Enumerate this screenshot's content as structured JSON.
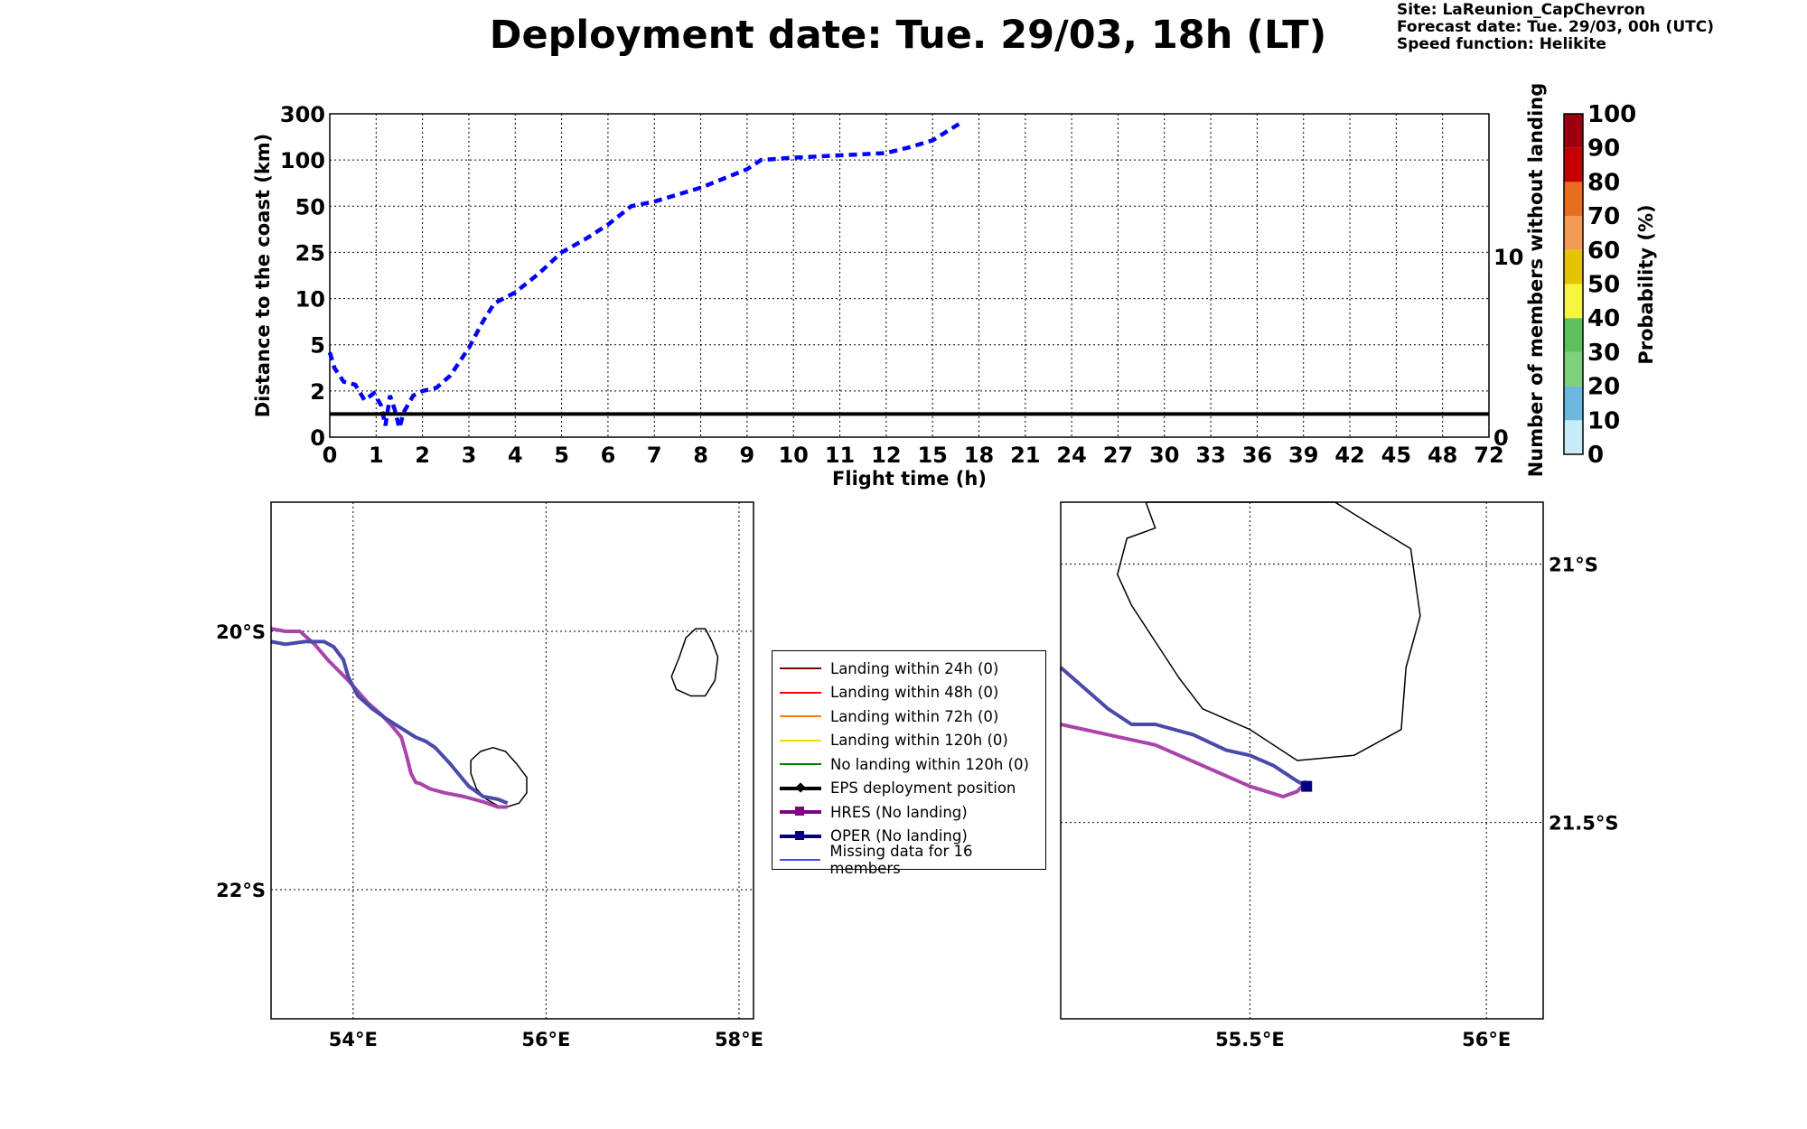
{
  "title": "Deployment date: Tue. 29/03, 18h (LT)",
  "info": {
    "site": "Site: LaReunion_CapChevron",
    "forecast": "Forecast date: Tue. 29/03, 00h (UTC)",
    "speed": "Speed function: Helikite"
  },
  "chart_data": [
    {
      "type": "line",
      "xlabel": "Flight time (h)",
      "ylabel": "Distance to the coast (km)",
      "y2label": "Number of members without landing",
      "x_ticks": [
        "0",
        "1",
        "2",
        "3",
        "4",
        "5",
        "6",
        "7",
        "8",
        "9",
        "10",
        "11",
        "12",
        "15",
        "18",
        "21",
        "24",
        "27",
        "30",
        "33",
        "36",
        "39",
        "42",
        "45",
        "48",
        "72"
      ],
      "y_ticks": [
        "0",
        "2",
        "5",
        "10",
        "25",
        "50",
        "100",
        "300"
      ],
      "y2_ticks": [
        "0",
        "10"
      ],
      "y_scale": "piecewise (ticks equally spaced)",
      "grid": true,
      "series": [
        {
          "style": "dashed",
          "color": "#0000ff",
          "x": [
            0,
            0.1,
            0.3,
            0.55,
            0.75,
            0.95,
            1.1,
            1.2,
            1.3,
            1.4,
            1.5,
            1.6,
            1.8,
            2.0,
            2.3,
            2.6,
            3.0,
            3.3,
            3.55,
            4.0,
            4.5,
            5.0,
            5.5,
            6.0,
            6.5,
            7.0,
            8.0,
            8.5,
            9.0,
            9.3,
            10.0,
            11.0,
            12.0,
            13.5,
            15.0,
            16.8
          ],
          "y": [
            4.5,
            3.5,
            2.6,
            2.4,
            1.6,
            1.9,
            1.4,
            0.5,
            1.8,
            1.2,
            0.4,
            1.1,
            1.8,
            2.0,
            2.2,
            3.0,
            4.8,
            7.5,
            9.5,
            12,
            18,
            25,
            32,
            40,
            50,
            55,
            70,
            80,
            90,
            100,
            110,
            120,
            130,
            155,
            185,
            260
          ]
        },
        {
          "style": "solid",
          "color": "#000000",
          "x": [
            0,
            72
          ],
          "y": [
            1,
            1
          ]
        }
      ]
    },
    {
      "type": "map",
      "x_ticks": [
        "54°E",
        "56°E",
        "58°E"
      ],
      "y_ticks": [
        "20°S",
        "22°S"
      ],
      "grid": true,
      "series": [
        {
          "name": "HRES (No landing)",
          "color": "#aa44aa",
          "x": [
            53.15,
            53.3,
            53.45,
            53.6,
            53.75,
            53.95,
            54.15,
            54.3,
            54.4,
            54.5,
            54.55,
            54.6,
            54.65,
            54.7,
            54.8,
            54.95,
            55.15,
            55.35,
            55.5,
            55.6
          ],
          "y": [
            -19.98,
            -20.0,
            -20.0,
            -20.1,
            -20.23,
            -20.38,
            -20.55,
            -20.65,
            -20.73,
            -20.82,
            -20.95,
            -21.1,
            -21.17,
            -21.18,
            -21.22,
            -21.25,
            -21.28,
            -21.32,
            -21.36,
            -21.36
          ]
        },
        {
          "name": "OPER (No landing)",
          "color": "#4a4aaa",
          "x": [
            53.15,
            53.3,
            53.5,
            53.7,
            53.8,
            53.9,
            53.95,
            54.05,
            54.2,
            54.35,
            54.5,
            54.65,
            54.75,
            54.85,
            55.0,
            55.2,
            55.35,
            55.5,
            55.6
          ],
          "y": [
            -20.08,
            -20.1,
            -20.08,
            -20.08,
            -20.12,
            -20.22,
            -20.35,
            -20.5,
            -20.6,
            -20.68,
            -20.75,
            -20.82,
            -20.85,
            -20.9,
            -21.02,
            -21.2,
            -21.28,
            -21.3,
            -21.33
          ]
        }
      ]
    },
    {
      "type": "map",
      "x_ticks": [
        "55.5°E",
        "56°E"
      ],
      "y_ticks": [
        "21°S",
        "21.5°S"
      ],
      "grid": true,
      "series": [
        {
          "name": "HRES (No landing)",
          "color": "#aa44aa",
          "x": [
            55.1,
            55.2,
            55.3,
            55.4,
            55.5,
            55.57,
            55.6,
            55.62
          ],
          "y": [
            -21.31,
            -21.33,
            -21.35,
            -21.39,
            -21.43,
            -21.45,
            -21.44,
            -21.42
          ]
        },
        {
          "name": "OPER (No landing)",
          "color": "#4a4aaa",
          "x": [
            55.1,
            55.15,
            55.2,
            55.25,
            55.3,
            55.38,
            55.45,
            55.5,
            55.55,
            55.6,
            55.62
          ],
          "y": [
            -21.2,
            -21.24,
            -21.28,
            -21.31,
            -21.31,
            -21.33,
            -21.36,
            -21.37,
            -21.39,
            -21.42,
            -21.43
          ]
        }
      ]
    }
  ],
  "legend": [
    {
      "label": "Landing within 24h (0)",
      "color": "#800000",
      "marker": ""
    },
    {
      "label": "Landing within 48h (0)",
      "color": "#ff0000",
      "marker": ""
    },
    {
      "label": "Landing within 72h (0)",
      "color": "#ff8000",
      "marker": ""
    },
    {
      "label": "Landing within 120h (0)",
      "color": "#ffd700",
      "marker": ""
    },
    {
      "label": "No landing within 120h (0)",
      "color": "#008000",
      "marker": ""
    },
    {
      "label": "EPS deployment position",
      "color": "#000000",
      "marker": "diamond"
    },
    {
      "label": "HRES (No landing)",
      "color": "#800080",
      "marker": "square"
    },
    {
      "label": "OPER (No landing)",
      "color": "#000080",
      "marker": "square"
    },
    {
      "label": "Missing data for 16 members",
      "color": "#4444ff",
      "marker": ""
    }
  ],
  "colorbar": {
    "label": "Probability (%)",
    "ticks": [
      "0",
      "10",
      "20",
      "30",
      "40",
      "50",
      "60",
      "70",
      "80",
      "90",
      "100"
    ],
    "colors": [
      "#c6ecfa",
      "#6bb7df",
      "#7ed07b",
      "#5fc05f",
      "#f5f542",
      "#e4c400",
      "#f39a55",
      "#e86d1f",
      "#c40000",
      "#9a0010"
    ]
  }
}
